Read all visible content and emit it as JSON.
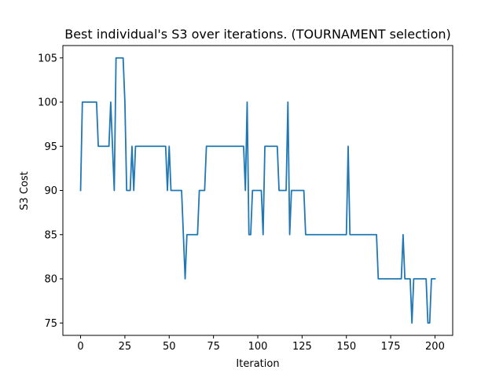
{
  "chart_data": {
    "type": "line",
    "title": "Best individual's S3 over iterations. (TOURNAMENT selection)",
    "xlabel": "Iteration",
    "ylabel": "S3 Cost",
    "xlim": [
      -10,
      210
    ],
    "ylim": [
      73.6,
      106.4
    ],
    "xticks": [
      0,
      25,
      50,
      75,
      100,
      125,
      150,
      175,
      200
    ],
    "yticks": [
      75,
      80,
      85,
      90,
      95,
      100,
      105
    ],
    "grid": false,
    "line_color": "#1f77b4",
    "series": [
      {
        "x": [
          0,
          1,
          2,
          3,
          4,
          5,
          6,
          7,
          8,
          9,
          10,
          11,
          12,
          13,
          14,
          15,
          16,
          17,
          18,
          19,
          20,
          21,
          22,
          23,
          24,
          25,
          26,
          27,
          28,
          29,
          30,
          31,
          32,
          33,
          34,
          35,
          36,
          37,
          38,
          39,
          40,
          41,
          42,
          43,
          44,
          45,
          46,
          47,
          48,
          49,
          50,
          51,
          52,
          53,
          54,
          55,
          56,
          57,
          58,
          59,
          60,
          61,
          62,
          63,
          64,
          65,
          66,
          67,
          68,
          69,
          70,
          71,
          72,
          73,
          74,
          75,
          76,
          77,
          78,
          79,
          80,
          81,
          82,
          83,
          84,
          85,
          86,
          87,
          88,
          89,
          90,
          91,
          92,
          93,
          94,
          95,
          96,
          97,
          98,
          99,
          100,
          101,
          102,
          103,
          104,
          105,
          106,
          107,
          108,
          109,
          110,
          111,
          112,
          113,
          114,
          115,
          116,
          117,
          118,
          119,
          120,
          121,
          122,
          123,
          124,
          125,
          126,
          127,
          128,
          129,
          130,
          131,
          132,
          133,
          134,
          135,
          136,
          137,
          138,
          139,
          140,
          141,
          142,
          143,
          144,
          145,
          146,
          147,
          148,
          149,
          150,
          151,
          152,
          153,
          154,
          155,
          156,
          157,
          158,
          159,
          160,
          161,
          162,
          163,
          164,
          165,
          166,
          167,
          168,
          169,
          170,
          171,
          172,
          173,
          174,
          175,
          176,
          177,
          178,
          179,
          180,
          181,
          182,
          183,
          184,
          185,
          186,
          187,
          188,
          189,
          190,
          191,
          192,
          193,
          194,
          195,
          196,
          197,
          198,
          199,
          200
        ],
        "y": [
          90,
          100,
          100,
          100,
          100,
          100,
          100,
          100,
          100,
          100,
          95,
          95,
          95,
          95,
          95,
          95,
          95,
          100,
          95,
          90,
          105,
          105,
          105,
          105,
          105,
          100,
          90,
          90,
          90,
          95,
          90,
          95,
          95,
          95,
          95,
          95,
          95,
          95,
          95,
          95,
          95,
          95,
          95,
          95,
          95,
          95,
          95,
          95,
          95,
          90,
          95,
          90,
          90,
          90,
          90,
          90,
          90,
          90,
          85,
          80,
          85,
          85,
          85,
          85,
          85,
          85,
          85,
          90,
          90,
          90,
          90,
          95,
          95,
          95,
          95,
          95,
          95,
          95,
          95,
          95,
          95,
          95,
          95,
          95,
          95,
          95,
          95,
          95,
          95,
          95,
          95,
          95,
          95,
          90,
          100,
          85,
          85,
          90,
          90,
          90,
          90,
          90,
          90,
          85,
          95,
          95,
          95,
          95,
          95,
          95,
          95,
          95,
          90,
          90,
          90,
          90,
          90,
          100,
          85,
          90,
          90,
          90,
          90,
          90,
          90,
          90,
          90,
          85,
          85,
          85,
          85,
          85,
          85,
          85,
          85,
          85,
          85,
          85,
          85,
          85,
          85,
          85,
          85,
          85,
          85,
          85,
          85,
          85,
          85,
          85,
          85,
          95,
          85,
          85,
          85,
          85,
          85,
          85,
          85,
          85,
          85,
          85,
          85,
          85,
          85,
          85,
          85,
          85,
          80,
          80,
          80,
          80,
          80,
          80,
          80,
          80,
          80,
          80,
          80,
          80,
          80,
          80,
          85,
          80,
          80,
          80,
          80,
          75,
          80,
          80,
          80,
          80,
          80,
          80,
          80,
          80,
          75,
          75,
          80,
          80,
          80
        ]
      }
    ]
  }
}
